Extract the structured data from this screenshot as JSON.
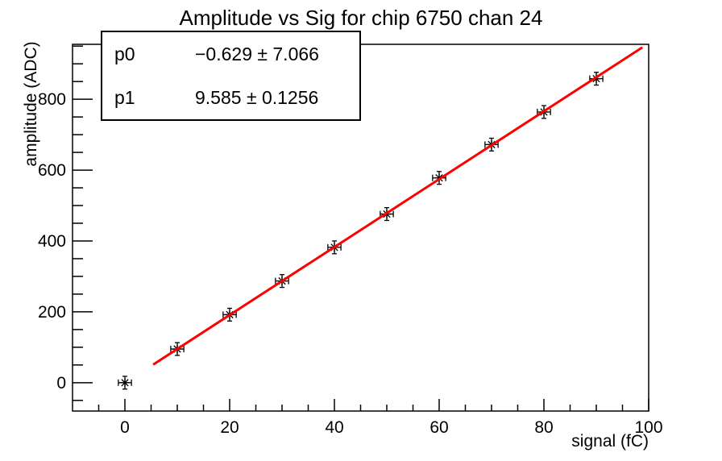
{
  "stats_box": {
    "rows": [
      {
        "param": "p0",
        "value": "−0.629 ± 7.066"
      },
      {
        "param": "p1",
        "value": "9.585 ± 0.1256"
      }
    ]
  },
  "chart_data": {
    "type": "scatter",
    "title": "Amplitude vs Sig for chip 6750 chan 24",
    "xlabel": "signal (fC)",
    "ylabel": "amplitude (ADC)",
    "xlim": [
      -10,
      100
    ],
    "ylim": [
      -80,
      955
    ],
    "x_major_ticks": [
      0,
      20,
      40,
      60,
      80,
      100
    ],
    "x_minor_step": 5,
    "y_major_ticks": [
      0,
      200,
      400,
      600,
      800
    ],
    "y_minor_step": 50,
    "grid": false,
    "legend_position": "none",
    "marker_style": "asterisk-with-error-bars",
    "x": [
      0,
      10,
      20,
      30,
      40,
      50,
      60,
      70,
      80,
      90
    ],
    "y": [
      0,
      95,
      192,
      287,
      382,
      476,
      578,
      672,
      764,
      858
    ],
    "x_err": 1.25,
    "y_err": 18,
    "fit": {
      "p0": -0.629,
      "p0_err": 7.066,
      "p1": 9.585,
      "p1_err": 0.1256,
      "draw_range": [
        5.4,
        98.8
      ],
      "color": "#ff0000"
    },
    "axis_color": "#000000",
    "background_color": "#ffffff"
  }
}
